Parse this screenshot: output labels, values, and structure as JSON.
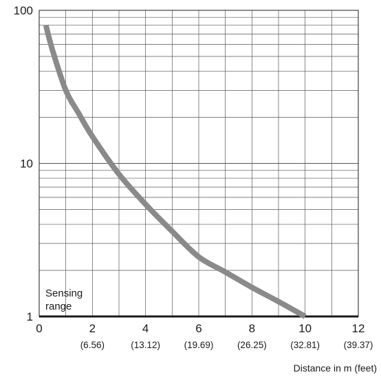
{
  "chart_data": {
    "type": "line",
    "title": "",
    "xlabel": "Distance in m (feet)",
    "ylabel": "",
    "xlim": [
      0,
      12
    ],
    "ylim": [
      1,
      100
    ],
    "yscale": "log",
    "grid": true,
    "x_ticks": [
      {
        "value": 0,
        "label": "0",
        "sublabel": ""
      },
      {
        "value": 2,
        "label": "2",
        "sublabel": "(6.56)"
      },
      {
        "value": 4,
        "label": "4",
        "sublabel": "(13.12)"
      },
      {
        "value": 6,
        "label": "6",
        "sublabel": "(19.69)"
      },
      {
        "value": 8,
        "label": "8",
        "sublabel": "(26.25)"
      },
      {
        "value": 10,
        "label": "10",
        "sublabel": "(32.81)"
      },
      {
        "value": 12,
        "label": "12",
        "sublabel": "(39.37)"
      }
    ],
    "y_ticks": [
      {
        "value": 1,
        "label": "1"
      },
      {
        "value": 10,
        "label": "10"
      },
      {
        "value": 100,
        "label": "100"
      }
    ],
    "annotation": "Sensing range",
    "series": [
      {
        "color": "#8a8a8a",
        "x": [
          0.25,
          0.5,
          1,
          1.5,
          2,
          3,
          4,
          5,
          6,
          7,
          8,
          9,
          10
        ],
        "y": [
          80,
          55,
          30,
          21,
          15,
          8.5,
          5.4,
          3.6,
          2.45,
          1.95,
          1.55,
          1.25,
          1.0
        ]
      }
    ]
  }
}
